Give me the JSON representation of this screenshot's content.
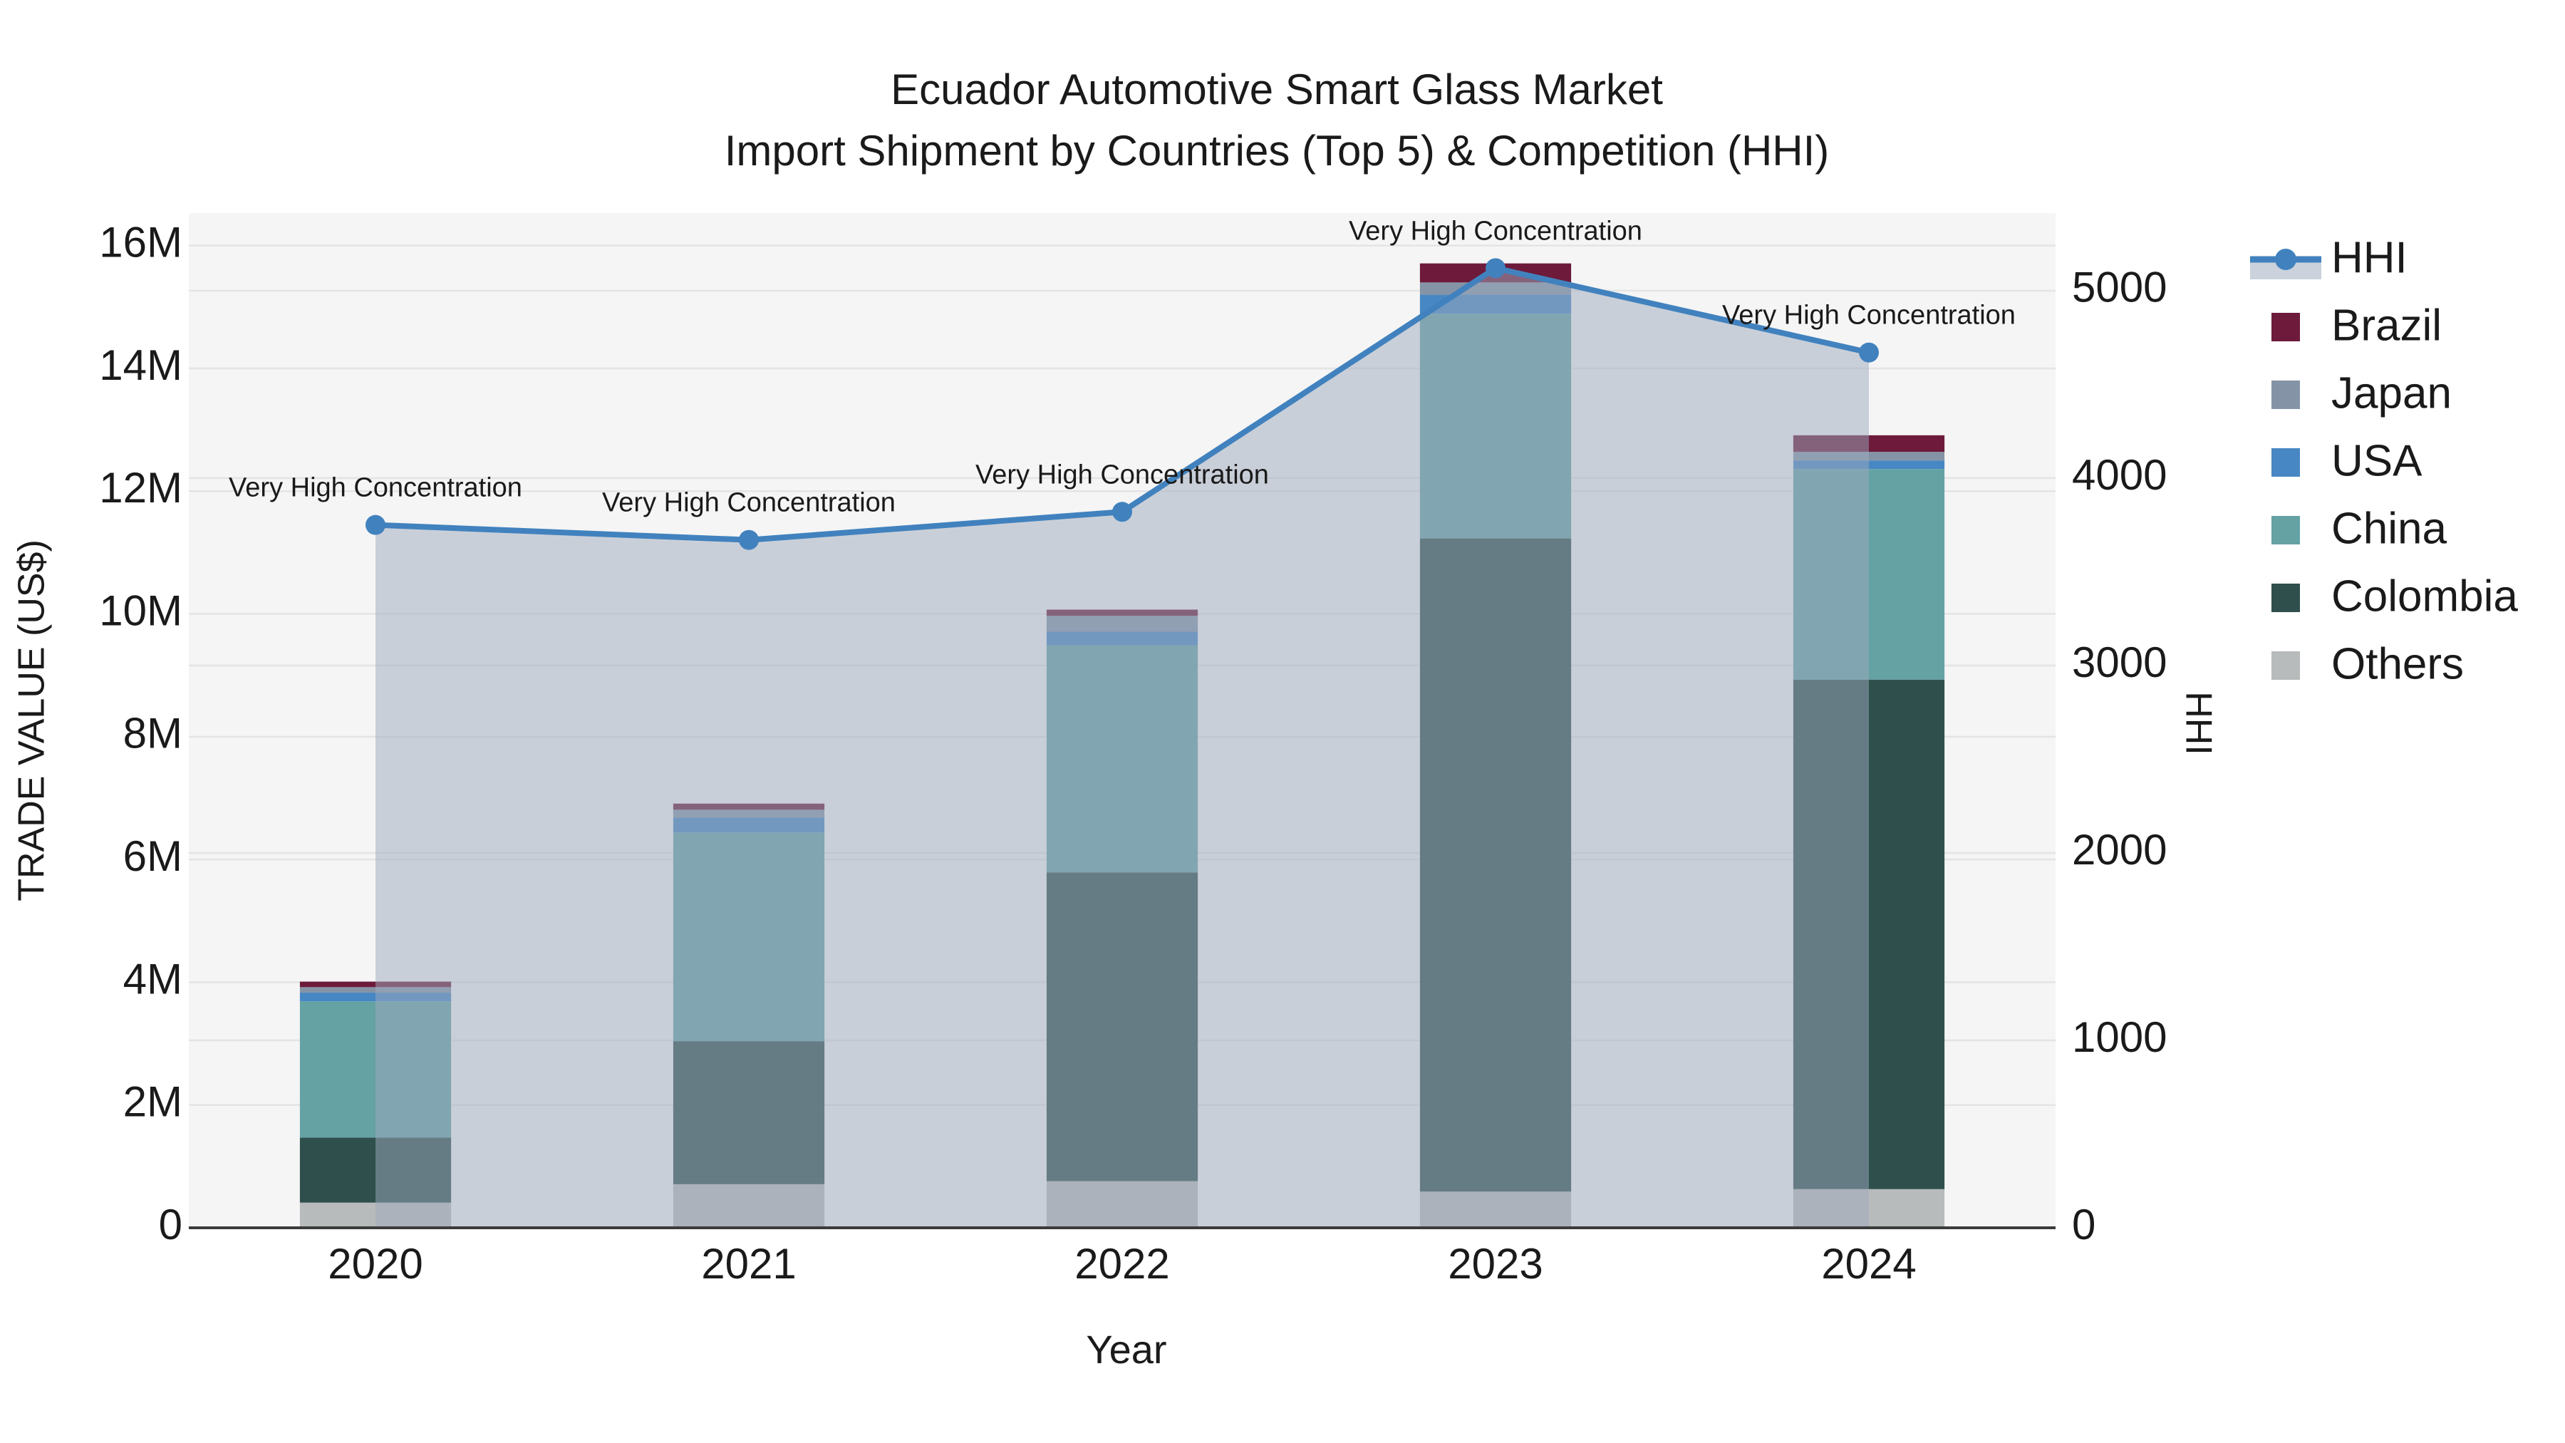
{
  "title": {
    "line1": "Ecuador Automotive Smart Glass Market",
    "line2": "Import Shipment by Countries (Top 5) & Competition (HHI)"
  },
  "axes": {
    "x": {
      "title": "Year"
    },
    "y_left": {
      "title": "TRADE VALUE (US$)"
    },
    "y_right": {
      "title": "HHI"
    }
  },
  "chart_data": {
    "type": "bar",
    "subtype": "stacked-bars-with-line-overlay",
    "title": "Ecuador Automotive Smart Glass Market — Import Shipment by Countries (Top 5) & Competition (HHI)",
    "xlabel": "Year",
    "ylabel": "TRADE VALUE (US$)",
    "y2label": "HHI",
    "categories": [
      "2020",
      "2021",
      "2022",
      "2023",
      "2024"
    ],
    "stack_order_bottom_to_top": [
      "Others",
      "Colombia",
      "China",
      "USA",
      "Japan",
      "Brazil"
    ],
    "series": [
      {
        "name": "Others",
        "color": "#B8BBBB",
        "values_musd": [
          0.41,
          0.71,
          0.76,
          0.59,
          0.63
        ]
      },
      {
        "name": "Colombia",
        "color": "#2F4F4C",
        "values_musd": [
          1.06,
          2.33,
          5.03,
          10.64,
          8.3
        ]
      },
      {
        "name": "China",
        "color": "#64A2A4",
        "values_musd": [
          2.22,
          3.4,
          3.7,
          3.66,
          3.43
        ]
      },
      {
        "name": "USA",
        "color": "#4787C3",
        "values_musd": [
          0.14,
          0.24,
          0.22,
          0.31,
          0.14
        ]
      },
      {
        "name": "Japan",
        "color": "#8494A6",
        "values_musd": [
          0.09,
          0.13,
          0.26,
          0.2,
          0.14
        ]
      },
      {
        "name": "Brazil",
        "color": "#6D1A3B",
        "values_musd": [
          0.09,
          0.1,
          0.1,
          0.31,
          0.27
        ]
      }
    ],
    "totals_musd": [
      4.01,
      6.91,
      10.07,
      15.71,
      12.91
    ],
    "hhi_line": {
      "name": "HHI",
      "color": "#4182BE",
      "fill_color": "rgba(158,170,189,0.5)",
      "values": [
        3750,
        3670,
        3820,
        5120,
        4670
      ]
    },
    "annotations": [
      {
        "year": "2020",
        "text": "Very High Concentration"
      },
      {
        "year": "2021",
        "text": "Very High Concentration"
      },
      {
        "year": "2022",
        "text": "Very High Concentration"
      },
      {
        "year": "2023",
        "text": "Very High Concentration"
      },
      {
        "year": "2024",
        "text": "Very High Concentration"
      }
    ],
    "ylim": [
      0,
      16530000
    ],
    "y2lim": [
      0,
      5414
    ],
    "yticks": {
      "values_m": [
        0,
        2,
        4,
        6,
        8,
        10,
        12,
        14,
        16
      ],
      "labels": [
        "0",
        "2M",
        "4M",
        "6M",
        "8M",
        "10M",
        "12M",
        "14M",
        "16M"
      ]
    },
    "y2ticks": {
      "values": [
        0,
        1000,
        2000,
        3000,
        4000,
        5000
      ],
      "labels": [
        "0",
        "1000",
        "2000",
        "3000",
        "4000",
        "5000"
      ]
    },
    "grid": true,
    "legend_position": "right",
    "plot_bg_color": "#F5F5F5",
    "grid_color": "#E4E4E4",
    "axis_line_color": "#3B3B3B"
  },
  "legend": {
    "entries": [
      {
        "label": "HHI",
        "type": "line",
        "color": "#4182BE",
        "band_color": "#CBD2DC"
      },
      {
        "label": "Brazil",
        "type": "swatch",
        "color": "#6D1A3B"
      },
      {
        "label": "Japan",
        "type": "swatch",
        "color": "#8494A6"
      },
      {
        "label": "USA",
        "type": "swatch",
        "color": "#4787C3"
      },
      {
        "label": "China",
        "type": "swatch",
        "color": "#64A2A4"
      },
      {
        "label": "Colombia",
        "type": "swatch",
        "color": "#2F4F4C"
      },
      {
        "label": "Others",
        "type": "swatch",
        "color": "#B8BBBB"
      }
    ]
  }
}
